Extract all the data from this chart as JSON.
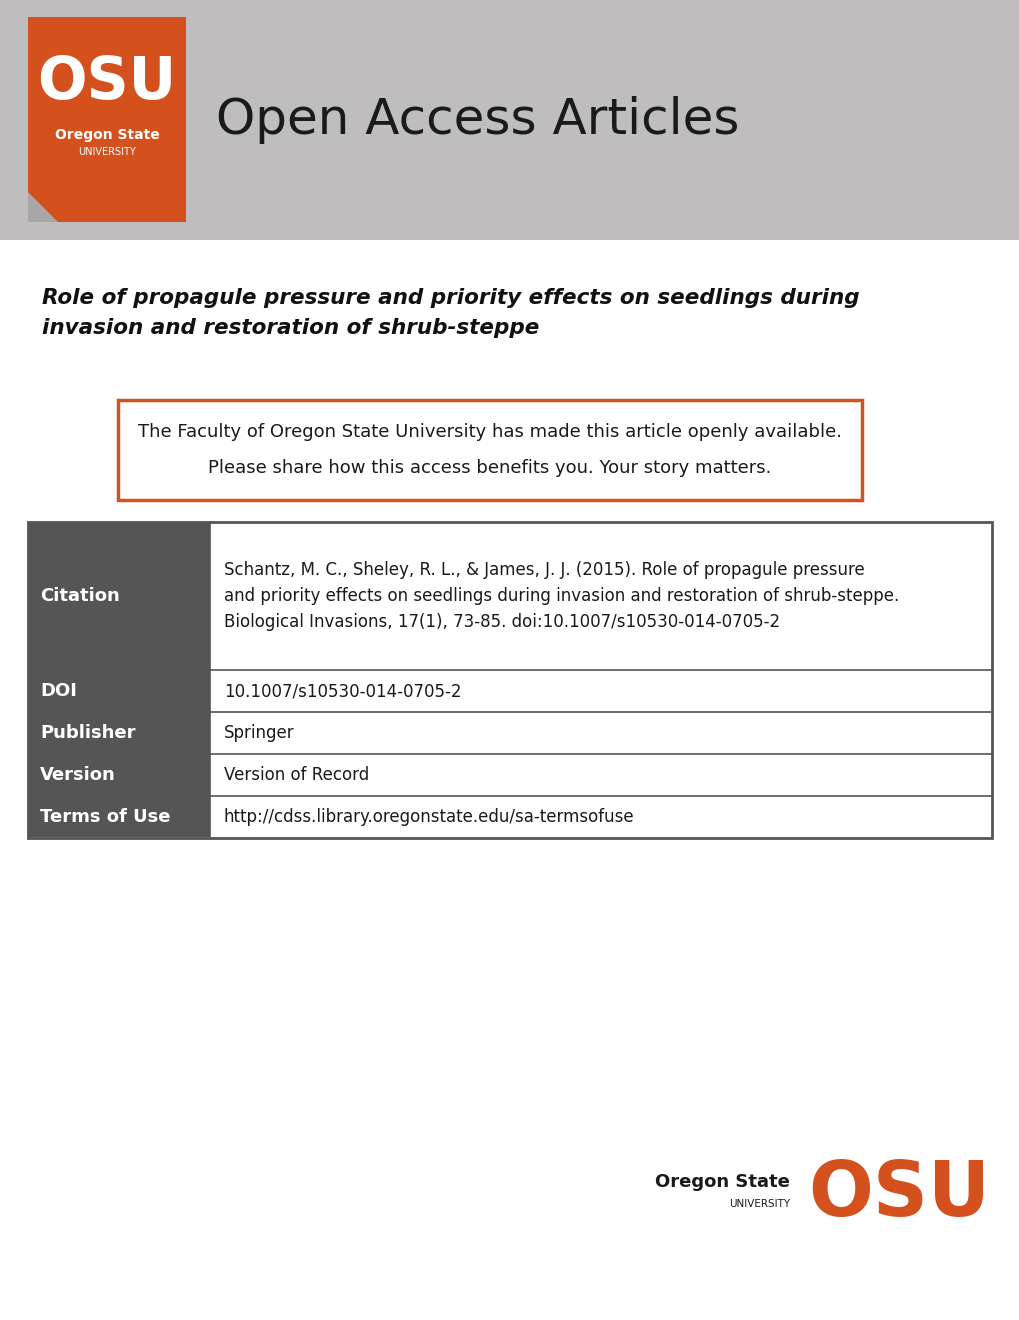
{
  "bg_color": "#ffffff",
  "header_bg_color": "#bfbdbd",
  "osu_orange": "#D4511E",
  "open_access_text": "Open Access Articles",
  "article_title_line1": "Role of propagule pressure and priority effects on seedlings during",
  "article_title_line2": "invasion and restoration of shrub-steppe",
  "notice_line1": "The Faculty of Oregon State University has made this article openly available.",
  "notice_line2": "Please share how this access benefits you. Your story matters.",
  "notice_border_color": "#D4511E",
  "table_border_color": "#555555",
  "table_header_bg": "#555555",
  "table_header_text_color": "#ffffff",
  "table_rows": [
    {
      "label": "Citation",
      "value": "Schantz, M. C., Sheley, R. L., & James, J. J. (2015). Role of propagule pressure\nand priority effects on seedlings during invasion and restoration of shrub-steppe.\nBiological Invasions, 17(1), 73-85. doi:10.1007/s10530-014-0705-2",
      "tall": true
    },
    {
      "label": "DOI",
      "value": "10.1007/s10530-014-0705-2",
      "tall": false
    },
    {
      "label": "Publisher",
      "value": "Springer",
      "tall": false
    },
    {
      "label": "Version",
      "value": "Version of Record",
      "tall": false
    },
    {
      "label": "Terms of Use",
      "value": "http://cdss.library.oregonstate.edu/sa-termsofuse",
      "tall": false
    }
  ]
}
